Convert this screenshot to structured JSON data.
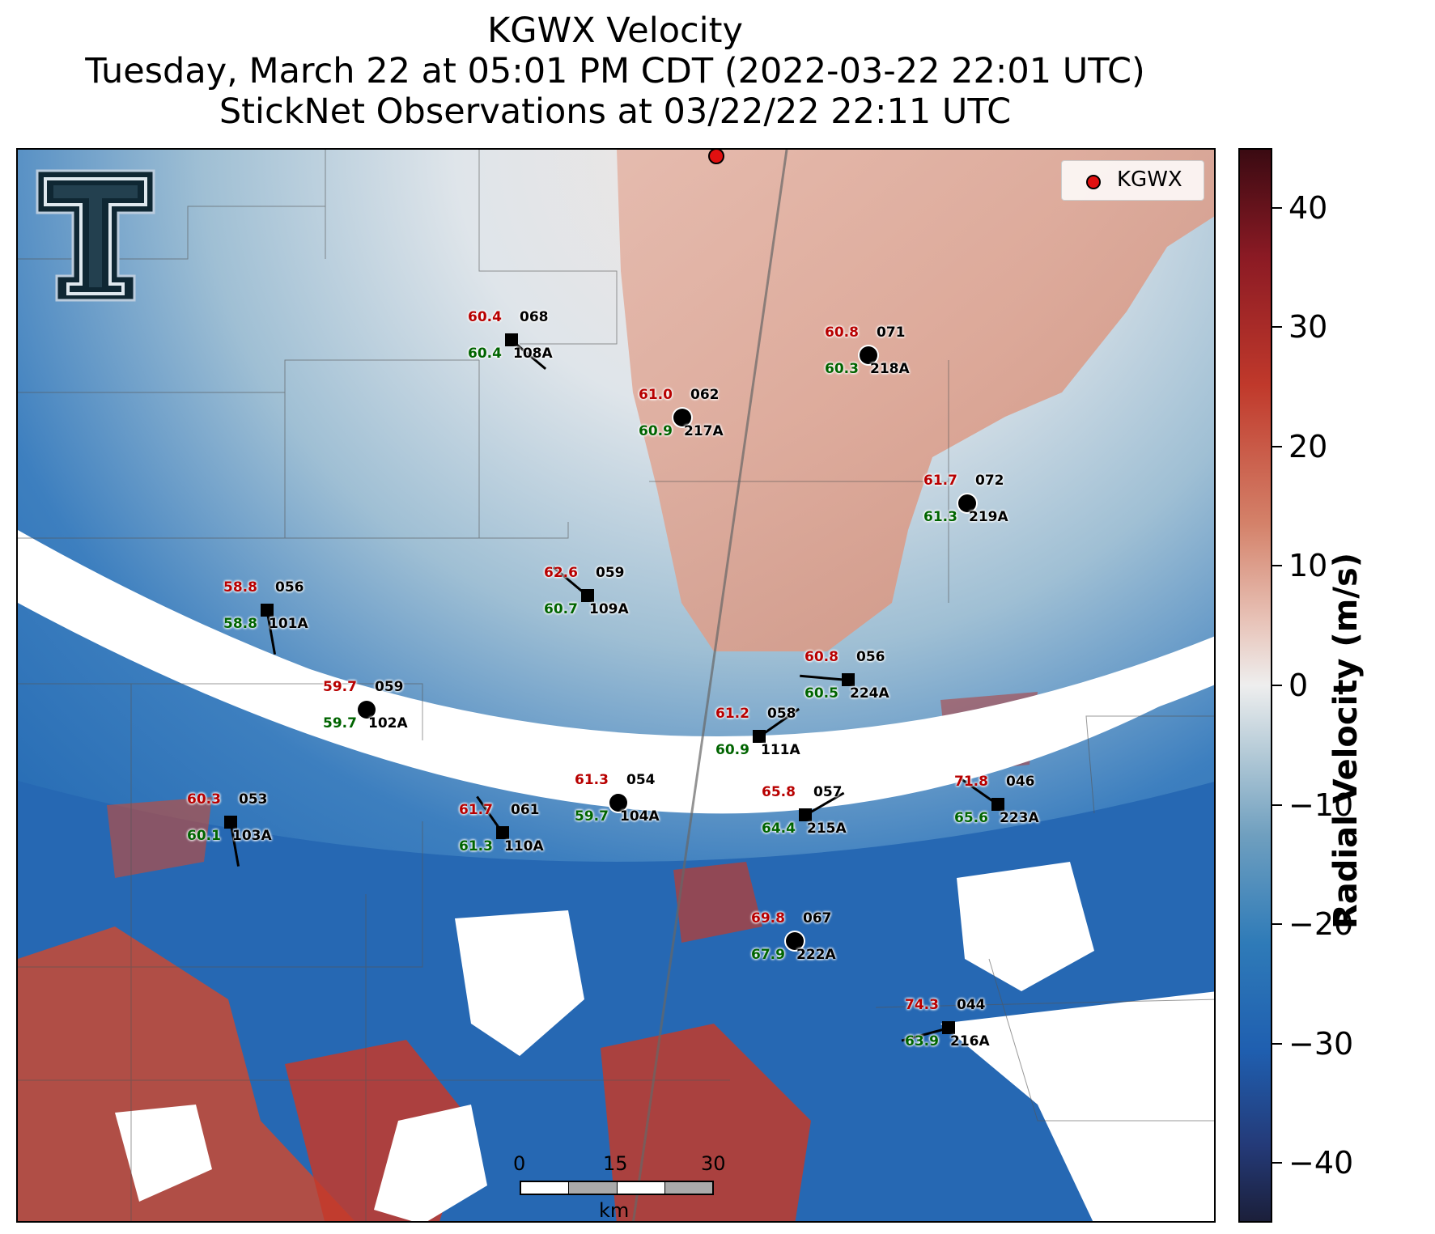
{
  "title": {
    "line1": "KGWX Velocity",
    "line2": "Tuesday, March 22 at 05:01 PM CDT (2022-03-22 22:01 UTC)",
    "line3": "StickNet Observations at 03/22/22 22:11 UTC"
  },
  "legend": {
    "label": "KGWX",
    "marker_color": "#e01010"
  },
  "colorbar": {
    "label": "Radial Velocity (m/s)",
    "ticks": [
      "40",
      "30",
      "20",
      "10",
      "0",
      "−10",
      "−20",
      "−30",
      "−40"
    ]
  },
  "scale_bar": {
    "labels": [
      "0",
      "15",
      "30"
    ],
    "unit": "km"
  },
  "logo": {
    "icon": "texas-tech-double-t-logo"
  },
  "stations": [
    {
      "id": "108A",
      "temp": "60.4",
      "dew": "60.4",
      "wind": "068"
    },
    {
      "id": "218A",
      "temp": "60.8",
      "dew": "60.3",
      "wind": "071"
    },
    {
      "id": "217A",
      "temp": "61.0",
      "dew": "60.9",
      "wind": "062"
    },
    {
      "id": "219A",
      "temp": "61.7",
      "dew": "61.3",
      "wind": "072"
    },
    {
      "id": "109A",
      "temp": "62.6",
      "dew": "60.7",
      "wind": "059"
    },
    {
      "id": "101A",
      "temp": "58.8",
      "dew": "58.8",
      "wind": "056"
    },
    {
      "id": "224A",
      "temp": "60.8",
      "dew": "60.5",
      "wind": "056"
    },
    {
      "id": "102A",
      "temp": "59.7",
      "dew": "59.7",
      "wind": "059"
    },
    {
      "id": "111A",
      "temp": "61.2",
      "dew": "60.9",
      "wind": "058"
    },
    {
      "id": "104A",
      "temp": "61.3",
      "dew": "59.7",
      "wind": "054"
    },
    {
      "id": "215A",
      "temp": "65.8",
      "dew": "64.4",
      "wind": "057"
    },
    {
      "id": "223A",
      "temp": "71.8",
      "dew": "65.6",
      "wind": "046"
    },
    {
      "id": "103A",
      "temp": "60.3",
      "dew": "60.1",
      "wind": "053"
    },
    {
      "id": "110A",
      "temp": "61.7",
      "dew": "61.3",
      "wind": "061"
    },
    {
      "id": "222A",
      "temp": "69.8",
      "dew": "67.9",
      "wind": "067"
    },
    {
      "id": "216A",
      "temp": "74.3",
      "dew": "63.9",
      "wind": "044"
    }
  ]
}
